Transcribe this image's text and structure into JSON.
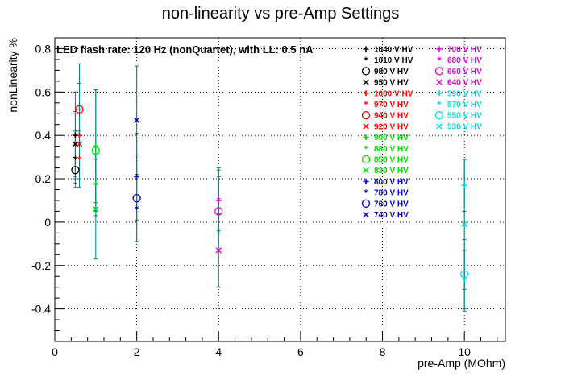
{
  "chart_data": {
    "type": "scatter",
    "title": "non-linearity vs pre-Amp Settings",
    "xlabel": "pre-Amp (MOhm)",
    "ylabel": "nonLinearity %",
    "xlim": [
      0,
      11
    ],
    "ylim": [
      -0.55,
      0.85
    ],
    "x_ticks": [
      "0",
      "2",
      "4",
      "6",
      "8",
      "10"
    ],
    "x_tick_values": [
      0,
      2,
      4,
      6,
      8,
      10
    ],
    "y_ticks": [
      "0.8",
      "0.6",
      "0.4",
      "0.2",
      "0",
      "-0.2",
      "-0.4"
    ],
    "y_tick_values": [
      0.8,
      0.6,
      0.4,
      0.2,
      0,
      -0.2,
      -0.4
    ],
    "grid": true,
    "annotation": "LED flash rate: 120 Hz  (nonQuartet), with LL: 0.5 nA",
    "errorbar_color": "#008080",
    "legend_position": "top-right",
    "series": [
      {
        "name": "1040 V HV",
        "marker": "+",
        "color": "#000000",
        "points": [
          {
            "x": 0.5,
            "y": 0.4,
            "err": 0.2
          }
        ]
      },
      {
        "name": "1010 V HV",
        "marker": "*",
        "color": "#000000",
        "points": [
          {
            "x": 0.5,
            "y": 0.29,
            "err": 0.13
          }
        ]
      },
      {
        "name": "980 V HV",
        "marker": "o",
        "color": "#000000",
        "points": [
          {
            "x": 0.5,
            "y": 0.24,
            "err": 0.06
          }
        ]
      },
      {
        "name": "950 V HV",
        "marker": "x",
        "color": "#000000",
        "points": [
          {
            "x": 0.5,
            "y": 0.36,
            "err": 0.15
          }
        ]
      },
      {
        "name": "1000 V HV",
        "marker": "+",
        "color": "#ff0000",
        "points": [
          {
            "x": 0.6,
            "y": 0.4,
            "err": 0.24
          }
        ]
      },
      {
        "name": "970 V HV",
        "marker": "*",
        "color": "#ff0000",
        "points": [
          {
            "x": 0.6,
            "y": 0.29,
            "err": 0.13
          }
        ]
      },
      {
        "name": "940 V HV",
        "marker": "o",
        "color": "#ff0000",
        "points": [
          {
            "x": 0.6,
            "y": 0.52,
            "err": 0.21
          }
        ]
      },
      {
        "name": "920 V HV",
        "marker": "x",
        "color": "#ff0000",
        "points": [
          {
            "x": 0.6,
            "y": 0.36,
            "err": 0.16
          }
        ]
      },
      {
        "name": "900 V HV",
        "marker": "+",
        "color": "#00dd00",
        "points": [
          {
            "x": 1,
            "y": 0.35,
            "err": 0.26
          }
        ]
      },
      {
        "name": "880 V HV",
        "marker": "*",
        "color": "#00dd00",
        "points": [
          {
            "x": 1,
            "y": 0.17,
            "err": 0.14
          }
        ]
      },
      {
        "name": "850 V HV",
        "marker": "o",
        "color": "#00dd00",
        "points": [
          {
            "x": 1,
            "y": 0.33,
            "err": 0.28
          }
        ]
      },
      {
        "name": "830 V HV",
        "marker": "x",
        "color": "#00dd00",
        "points": [
          {
            "x": 1,
            "y": 0.06,
            "err": 0.23
          }
        ]
      },
      {
        "name": "800 V HV",
        "marker": "+",
        "color": "#0000cc",
        "points": [
          {
            "x": 2,
            "y": 0.21,
            "err": 0.2
          }
        ]
      },
      {
        "name": "780 V HV",
        "marker": "*",
        "color": "#0000cc",
        "points": [
          {
            "x": 2,
            "y": 0.06,
            "err": 0.15
          }
        ]
      },
      {
        "name": "760 V HV",
        "marker": "o",
        "color": "#0000cc",
        "points": [
          {
            "x": 2,
            "y": 0.11,
            "err": 0.2
          }
        ]
      },
      {
        "name": "740 V HV",
        "marker": "x",
        "color": "#0000cc",
        "points": [
          {
            "x": 2,
            "y": 0.47,
            "err": 0.25
          }
        ]
      },
      {
        "name": "700 V HV",
        "marker": "+",
        "color": "#dd00dd",
        "points": [
          {
            "x": 4,
            "y": 0.1,
            "err": 0.15
          }
        ]
      },
      {
        "name": "680 V HV",
        "marker": "*",
        "color": "#dd00dd",
        "points": [
          {
            "x": 4,
            "y": 0.1,
            "err": 0.14
          }
        ]
      },
      {
        "name": "660 V HV",
        "marker": "o",
        "color": "#dd00dd",
        "points": [
          {
            "x": 4,
            "y": 0.05,
            "err": 0.16
          }
        ]
      },
      {
        "name": "640 V HV",
        "marker": "x",
        "color": "#dd00dd",
        "points": [
          {
            "x": 4,
            "y": -0.13,
            "err": 0.17
          }
        ]
      },
      {
        "name": "590 V HV",
        "marker": "+",
        "color": "#00dddd",
        "points": [
          {
            "x": 10,
            "y": 0.17,
            "err": 0.12
          }
        ]
      },
      {
        "name": "570 V HV",
        "marker": "*",
        "color": "#00dddd",
        "points": [
          {
            "x": 10,
            "y": -0.27,
            "err": 0.14
          }
        ]
      },
      {
        "name": "550 V HV",
        "marker": "o",
        "color": "#00dddd",
        "points": [
          {
            "x": 10,
            "y": -0.24,
            "err": 0.16
          }
        ]
      },
      {
        "name": "530 V HV",
        "marker": "x",
        "color": "#00dddd",
        "points": [
          {
            "x": 10,
            "y": -0.01,
            "err": 0.3
          }
        ]
      }
    ]
  }
}
